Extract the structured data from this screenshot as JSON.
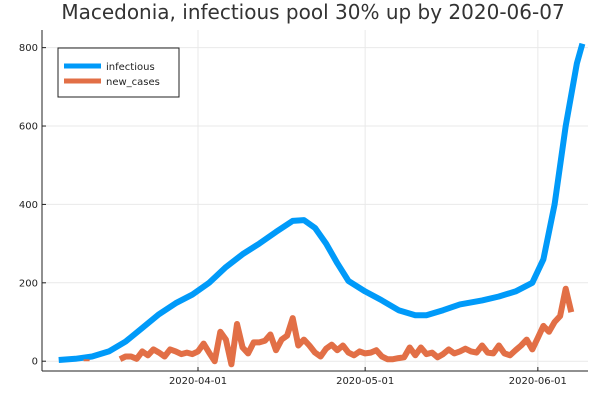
{
  "chart_data": {
    "type": "line",
    "title": "Macedonia, infectious pool 30% up by 2020-06-07",
    "xlabel": "",
    "ylabel": "",
    "x_axis": {
      "type": "date",
      "range": [
        "2020-03-04",
        "2020-06-10"
      ],
      "ticks": [
        "2020-04-01",
        "2020-05-01",
        "2020-06-01"
      ]
    },
    "y_axis": {
      "range": [
        -25,
        845
      ],
      "ticks": [
        0,
        200,
        400,
        600,
        800
      ]
    },
    "grid": true,
    "legend": {
      "placement": "top-left"
    },
    "series": [
      {
        "name": "infectious",
        "color": "#009af9",
        "points": [
          [
            "2020-03-07",
            3
          ],
          [
            "2020-03-10",
            6
          ],
          [
            "2020-03-13",
            12
          ],
          [
            "2020-03-16",
            25
          ],
          [
            "2020-03-19",
            50
          ],
          [
            "2020-03-22",
            85
          ],
          [
            "2020-03-25",
            120
          ],
          [
            "2020-03-28",
            148
          ],
          [
            "2020-03-31",
            170
          ],
          [
            "2020-04-03",
            200
          ],
          [
            "2020-04-06",
            240
          ],
          [
            "2020-04-09",
            273
          ],
          [
            "2020-04-12",
            300
          ],
          [
            "2020-04-15",
            330
          ],
          [
            "2020-04-18",
            358
          ],
          [
            "2020-04-20",
            360
          ],
          [
            "2020-04-22",
            340
          ],
          [
            "2020-04-24",
            300
          ],
          [
            "2020-04-26",
            250
          ],
          [
            "2020-04-28",
            205
          ],
          [
            "2020-05-01",
            178
          ],
          [
            "2020-05-04",
            155
          ],
          [
            "2020-05-07",
            130
          ],
          [
            "2020-05-10",
            117
          ],
          [
            "2020-05-12",
            117
          ],
          [
            "2020-05-15",
            130
          ],
          [
            "2020-05-18",
            145
          ],
          [
            "2020-05-22",
            155
          ],
          [
            "2020-05-25",
            165
          ],
          [
            "2020-05-28",
            178
          ],
          [
            "2020-05-31",
            200
          ],
          [
            "2020-06-02",
            260
          ],
          [
            "2020-06-04",
            400
          ],
          [
            "2020-06-06",
            600
          ],
          [
            "2020-06-08",
            760
          ],
          [
            "2020-06-09",
            810
          ]
        ]
      },
      {
        "name": "new_cases",
        "color": "#e26f46",
        "points": [
          [
            "2020-03-12",
            0
          ],
          [
            "2020-03-12",
            5
          ],
          [
            "2020-03-16",
            null
          ],
          [
            "2020-03-18",
            5
          ],
          [
            "2020-03-19",
            12
          ],
          [
            "2020-03-20",
            12
          ],
          [
            "2020-03-21",
            6
          ],
          [
            "2020-03-22",
            25
          ],
          [
            "2020-03-23",
            15
          ],
          [
            "2020-03-24",
            30
          ],
          [
            "2020-03-25",
            22
          ],
          [
            "2020-03-26",
            12
          ],
          [
            "2020-03-27",
            30
          ],
          [
            "2020-03-28",
            25
          ],
          [
            "2020-03-29",
            18
          ],
          [
            "2020-03-30",
            22
          ],
          [
            "2020-03-31",
            18
          ],
          [
            "2020-04-01",
            25
          ],
          [
            "2020-04-02",
            45
          ],
          [
            "2020-04-03",
            22
          ],
          [
            "2020-04-04",
            0
          ],
          [
            "2020-04-05",
            75
          ],
          [
            "2020-04-06",
            55
          ],
          [
            "2020-04-07",
            -8
          ],
          [
            "2020-04-08",
            95
          ],
          [
            "2020-04-09",
            35
          ],
          [
            "2020-04-10",
            20
          ],
          [
            "2020-04-11",
            48
          ],
          [
            "2020-04-12",
            48
          ],
          [
            "2020-04-13",
            52
          ],
          [
            "2020-04-14",
            68
          ],
          [
            "2020-04-15",
            28
          ],
          [
            "2020-04-16",
            55
          ],
          [
            "2020-04-17",
            65
          ],
          [
            "2020-04-18",
            110
          ],
          [
            "2020-04-19",
            40
          ],
          [
            "2020-04-20",
            55
          ],
          [
            "2020-04-21",
            40
          ],
          [
            "2020-04-22",
            22
          ],
          [
            "2020-04-23",
            12
          ],
          [
            "2020-04-24",
            32
          ],
          [
            "2020-04-25",
            42
          ],
          [
            "2020-04-26",
            28
          ],
          [
            "2020-04-27",
            40
          ],
          [
            "2020-04-28",
            22
          ],
          [
            "2020-04-29",
            15
          ],
          [
            "2020-04-30",
            25
          ],
          [
            "2020-05-01",
            20
          ],
          [
            "2020-05-02",
            22
          ],
          [
            "2020-05-03",
            28
          ],
          [
            "2020-05-04",
            12
          ],
          [
            "2020-05-05",
            5
          ],
          [
            "2020-05-06",
            5
          ],
          [
            "2020-05-07",
            8
          ],
          [
            "2020-05-08",
            10
          ],
          [
            "2020-05-09",
            35
          ],
          [
            "2020-05-10",
            15
          ],
          [
            "2020-05-11",
            35
          ],
          [
            "2020-05-12",
            18
          ],
          [
            "2020-05-13",
            22
          ],
          [
            "2020-05-14",
            10
          ],
          [
            "2020-05-15",
            18
          ],
          [
            "2020-05-16",
            30
          ],
          [
            "2020-05-17",
            20
          ],
          [
            "2020-05-18",
            25
          ],
          [
            "2020-05-19",
            32
          ],
          [
            "2020-05-20",
            25
          ],
          [
            "2020-05-21",
            22
          ],
          [
            "2020-05-22",
            40
          ],
          [
            "2020-05-23",
            22
          ],
          [
            "2020-05-24",
            20
          ],
          [
            "2020-05-25",
            40
          ],
          [
            "2020-05-26",
            20
          ],
          [
            "2020-05-27",
            15
          ],
          [
            "2020-05-28",
            28
          ],
          [
            "2020-05-29",
            40
          ],
          [
            "2020-05-30",
            55
          ],
          [
            "2020-05-31",
            30
          ],
          [
            "2020-06-01",
            60
          ],
          [
            "2020-06-02",
            90
          ],
          [
            "2020-06-03",
            75
          ],
          [
            "2020-06-04",
            100
          ],
          [
            "2020-06-05",
            115
          ],
          [
            "2020-06-06",
            185
          ],
          [
            "2020-06-07",
            125
          ]
        ]
      }
    ]
  }
}
